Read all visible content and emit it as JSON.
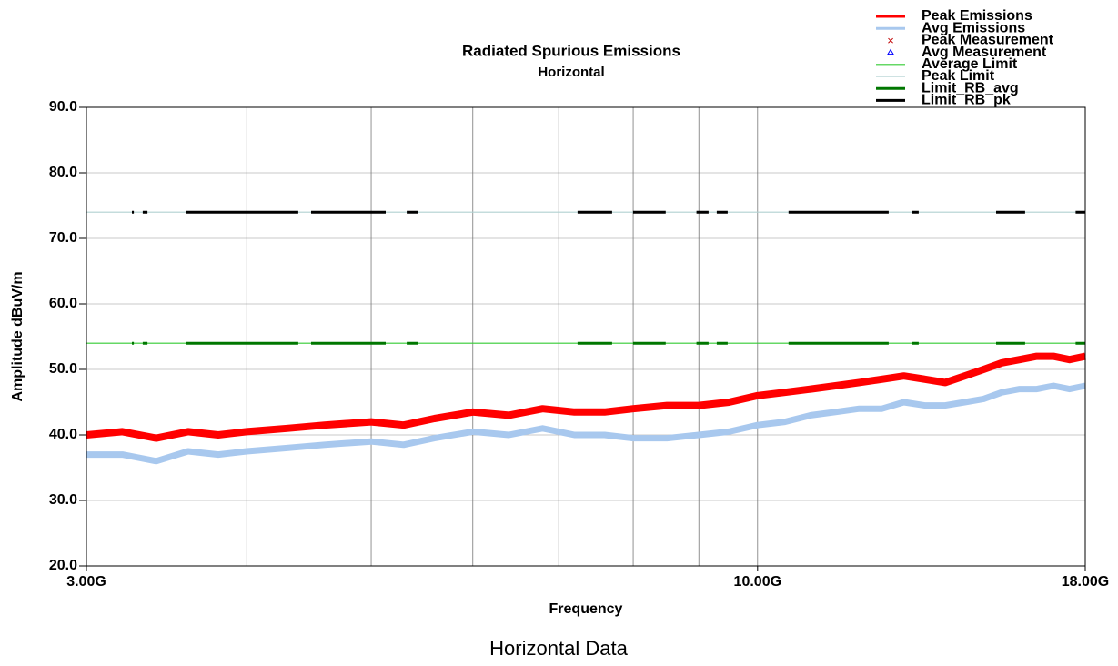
{
  "chart_data": {
    "type": "line",
    "title": "Radiated Spurious Emissions",
    "subtitle": "Horizontal",
    "x_label": "Frequency",
    "y_label": "Amplitude dBuV/m",
    "caption": "Horizontal Data",
    "x_log": true,
    "xlim": [
      3,
      18
    ],
    "xticks": [
      {
        "value": 3,
        "label": "3.00G"
      },
      {
        "value": 10,
        "label": "10.00G"
      },
      {
        "value": 18,
        "label": "18.00G"
      }
    ],
    "xgrid": [
      4,
      5,
      6,
      7,
      8,
      9
    ],
    "ylim": [
      20,
      90
    ],
    "yticks": [
      {
        "value": 20,
        "label": "20.0"
      },
      {
        "value": 30,
        "label": "30.0"
      },
      {
        "value": 40,
        "label": "40.0"
      },
      {
        "value": 50,
        "label": "50.0"
      },
      {
        "value": 60,
        "label": "60.0"
      },
      {
        "value": 70,
        "label": "70.0"
      },
      {
        "value": 80,
        "label": "80.0"
      },
      {
        "value": 90,
        "label": "90.0"
      }
    ],
    "grid": true,
    "series": [
      {
        "name": "Peak Emissions",
        "color": "#ff0000",
        "width": 8,
        "x": [
          3.0,
          3.2,
          3.4,
          3.6,
          3.8,
          4.0,
          4.3,
          4.6,
          5.0,
          5.3,
          5.6,
          6.0,
          6.4,
          6.8,
          7.2,
          7.6,
          8.0,
          8.5,
          9.0,
          9.5,
          10.0,
          10.5,
          11.0,
          11.5,
          12.0,
          12.5,
          13.0,
          13.5,
          14.0,
          14.5,
          15.0,
          15.5,
          16.0,
          16.5,
          17.0,
          17.5,
          18.0
        ],
        "values": [
          40,
          40.5,
          39.5,
          40.5,
          40,
          40.5,
          41,
          41.5,
          42,
          41.5,
          42.5,
          43.5,
          43,
          44,
          43.5,
          43.5,
          44,
          44.5,
          44.5,
          45,
          46,
          46.5,
          47,
          47.5,
          48,
          48.5,
          49,
          48.5,
          48,
          49,
          50,
          51,
          51.5,
          52,
          52,
          51.5,
          52
        ]
      },
      {
        "name": "Avg Emissions",
        "color": "#a8c8ee",
        "width": 7,
        "x": [
          3.0,
          3.2,
          3.4,
          3.6,
          3.8,
          4.0,
          4.3,
          4.6,
          5.0,
          5.3,
          5.6,
          6.0,
          6.4,
          6.8,
          7.2,
          7.6,
          8.0,
          8.5,
          9.0,
          9.5,
          10.0,
          10.5,
          11.0,
          11.5,
          12.0,
          12.5,
          13.0,
          13.5,
          14.0,
          14.5,
          15.0,
          15.5,
          16.0,
          16.5,
          17.0,
          17.5,
          18.0
        ],
        "values": [
          37,
          37,
          36,
          37.5,
          37,
          37.5,
          38,
          38.5,
          39,
          38.5,
          39.5,
          40.5,
          40,
          41,
          40,
          40,
          39.5,
          39.5,
          40,
          40.5,
          41.5,
          42,
          43,
          43.5,
          44,
          44,
          45,
          44.5,
          44.5,
          45,
          45.5,
          46.5,
          47,
          47,
          47.5,
          47,
          47.5
        ]
      },
      {
        "name": "Peak Measurement",
        "color": "#c00000",
        "marker": "x",
        "x": [],
        "values": []
      },
      {
        "name": "Avg Measurement",
        "color": "#0000ff",
        "marker": "triangle",
        "x": [],
        "values": []
      },
      {
        "name": "Average Limit",
        "color": "#33cc33",
        "width": 1.2,
        "x": [
          3,
          18
        ],
        "values": [
          54,
          54
        ]
      },
      {
        "name": "Peak Limit",
        "color": "#b0d0d0",
        "width": 1.2,
        "x": [
          3,
          18
        ],
        "values": [
          74,
          74
        ]
      },
      {
        "name": "Limit_RB_avg",
        "color": "#007700",
        "width": 3,
        "x": [
          3.255,
          3.266,
          null,
          3.319,
          3.347,
          null,
          3.59,
          4.387,
          null,
          4.489,
          5.132,
          null,
          5.329,
          5.434,
          null,
          7.24,
          7.703,
          null,
          7.998,
          8.481,
          null,
          8.961,
          9.158,
          null,
          9.293,
          9.477,
          null,
          10.57,
          12.65,
          null,
          13.2,
          13.35,
          null,
          15.34,
          16.16,
          null,
          17.69,
          18
        ],
        "values": [
          54,
          54,
          null,
          54,
          54,
          null,
          54,
          54,
          null,
          54,
          54,
          null,
          54,
          54,
          null,
          54,
          54,
          null,
          54,
          54,
          null,
          54,
          54,
          null,
          54,
          54,
          null,
          54,
          54,
          null,
          54,
          54,
          null,
          54,
          54,
          null,
          54,
          54
        ]
      },
      {
        "name": "Limit_RB_pk",
        "color": "#000000",
        "width": 3,
        "x": [
          3.255,
          3.266,
          null,
          3.319,
          3.347,
          null,
          3.59,
          4.387,
          null,
          4.489,
          5.132,
          null,
          5.329,
          5.434,
          null,
          7.24,
          7.703,
          null,
          7.998,
          8.481,
          null,
          8.961,
          9.158,
          null,
          9.293,
          9.477,
          null,
          10.57,
          12.65,
          null,
          13.2,
          13.35,
          null,
          15.34,
          16.16,
          null,
          17.69,
          18
        ],
        "values": [
          74,
          74,
          null,
          74,
          74,
          null,
          74,
          74,
          null,
          74,
          74,
          null,
          74,
          74,
          null,
          74,
          74,
          null,
          74,
          74,
          null,
          74,
          74,
          null,
          74,
          74,
          null,
          74,
          74,
          null,
          74,
          74,
          null,
          74,
          74,
          null,
          74,
          74
        ]
      }
    ]
  }
}
